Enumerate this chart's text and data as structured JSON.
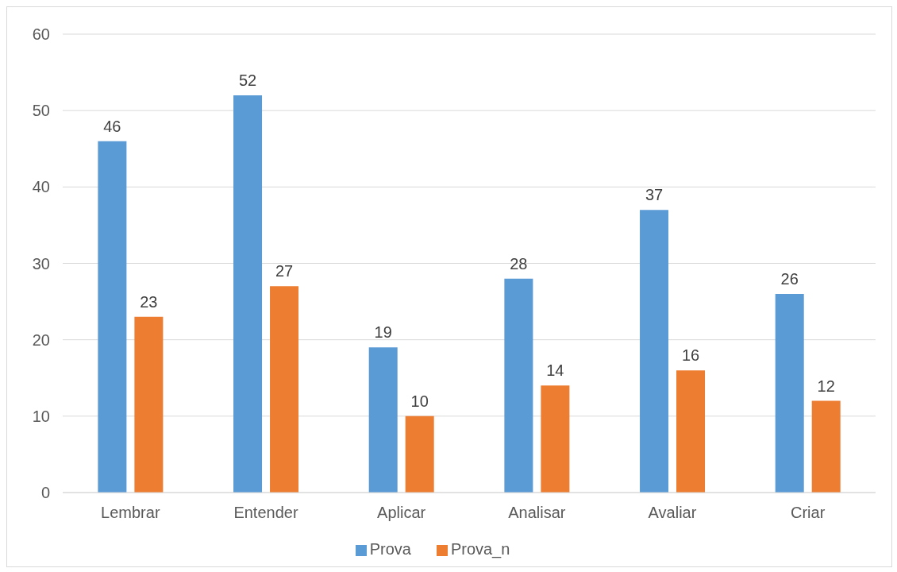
{
  "chart_data": {
    "type": "bar",
    "categories": [
      "Lembrar",
      "Entender",
      "Aplicar",
      "Analisar",
      "Avaliar",
      "Criar"
    ],
    "series": [
      {
        "name": "Prova",
        "color": "#5b9bd5",
        "values": [
          46,
          52,
          19,
          28,
          37,
          26
        ]
      },
      {
        "name": "Prova_n",
        "color": "#ed7d31",
        "values": [
          23,
          27,
          10,
          14,
          16,
          12
        ]
      }
    ],
    "ylim": [
      0,
      60
    ],
    "yticks": [
      0,
      10,
      20,
      30,
      40,
      50,
      60
    ],
    "grid": "y",
    "legend": "bottom",
    "data_labels": true
  }
}
